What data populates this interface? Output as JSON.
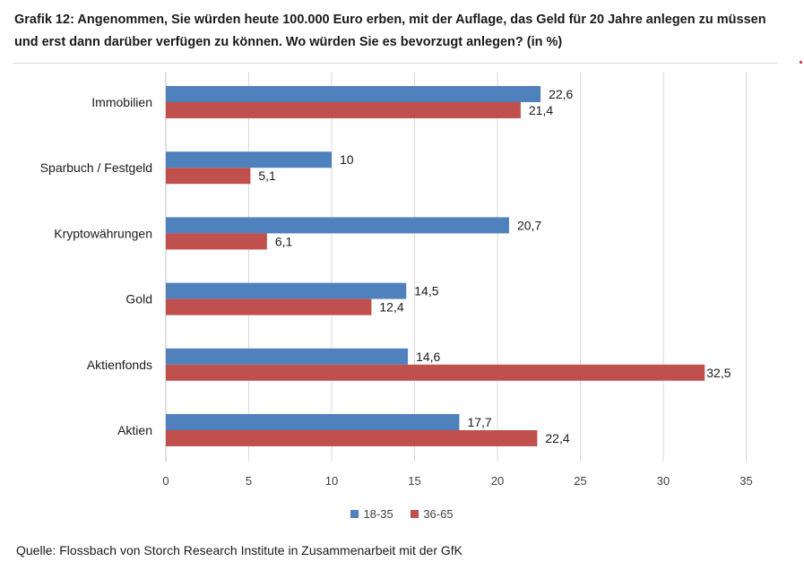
{
  "title": "Grafik 12: Angenommen, Sie würden heute 100.000 Euro erben, mit der Auflage, das Geld für 20 Jahre anlegen zu müssen und erst dann darüber verfügen zu können. Wo würden Sie es bevorzugt anlegen? (in %)",
  "source": "Quelle: Flossbach von Storch Research Institute in Zusammenarbeit mit der GfK",
  "colors": {
    "series_18_35": "#4f81bd",
    "series_36_65": "#c0504d",
    "grid": "#d9d9d9",
    "axis": "#bfbfbf"
  },
  "chart_data": {
    "type": "bar",
    "orientation": "horizontal",
    "categories": [
      "Immobilien",
      "Sparbuch / Festgeld",
      "Kryptowährungen",
      "Gold",
      "Aktienfonds",
      "Aktien"
    ],
    "series": [
      {
        "name": "18-35",
        "values": [
          22.6,
          10,
          20.7,
          14.5,
          14.6,
          17.7
        ],
        "labels": [
          "22,6",
          "10",
          "20,7",
          "14,5",
          "14,6",
          "17,7"
        ]
      },
      {
        "name": "36-65",
        "values": [
          21.4,
          5.1,
          6.1,
          12.4,
          32.5,
          22.4
        ],
        "labels": [
          "21,4",
          "5,1",
          "6,1",
          "12,4",
          "32,5",
          "22,4"
        ]
      }
    ],
    "xlim": [
      0,
      35
    ],
    "xticks": [
      "0",
      "5",
      "10",
      "15",
      "20",
      "25",
      "30",
      "35"
    ],
    "grid": true,
    "legend_position": "bottom"
  }
}
